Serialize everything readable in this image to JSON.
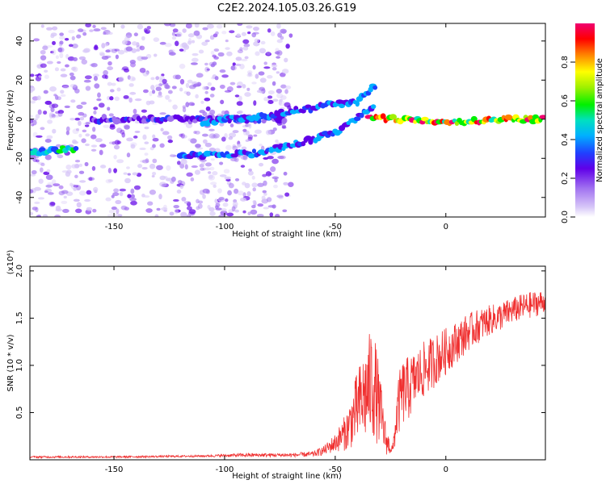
{
  "figure": {
    "title": "C2E2.2024.105.03.26.G19"
  },
  "chart_data": [
    {
      "type": "heatmap",
      "xlabel": "Height of straight line (km)",
      "ylabel": "Frequency (Hz)",
      "xlim": [
        -188,
        45
      ],
      "ylim": [
        -50,
        49
      ],
      "xticks": [
        -150,
        -100,
        -50,
        0
      ],
      "xtick_labels": [
        "-150",
        "-100",
        "-50",
        "0"
      ],
      "yticks": [
        -40,
        -20,
        0,
        20,
        40
      ],
      "ytick_labels": [
        "-40",
        "-20",
        "0",
        "20",
        "40"
      ],
      "colorbar": {
        "label": "Normalized spectral amplitude",
        "range": [
          0,
          1
        ],
        "ticks": [
          0.0,
          0.2,
          0.4,
          0.6,
          0.8
        ],
        "tick_labels": [
          "0.0",
          "0.2",
          "0.4",
          "0.6",
          "0.8"
        ],
        "colormap": [
          "#ffffff",
          "#d8c8f8",
          "#a070f0",
          "#6000e8",
          "#2040ff",
          "#00b0ff",
          "#00e0c0",
          "#00f000",
          "#a0f000",
          "#ffff00",
          "#ff8000",
          "#ff0000",
          "#f00070"
        ]
      },
      "traces": [
        {
          "points": [
            [
              -188,
              -17
            ],
            [
              -178,
              -16
            ],
            [
              -172,
              -15
            ],
            [
              -166,
              -15
            ]
          ],
          "amplitude": 0.45
        },
        {
          "points": [
            [
              -160,
              0
            ],
            [
              -150,
              0
            ],
            [
              -140,
              0
            ],
            [
              -130,
              0
            ],
            [
              -120,
              0
            ],
            [
              -110,
              0
            ],
            [
              -100,
              0
            ],
            [
              -90,
              0
            ],
            [
              -80,
              0
            ],
            [
              -72,
              0
            ]
          ],
          "amplitude": 0.25
        },
        {
          "points": [
            [
              -120,
              -18
            ],
            [
              -110,
              -19
            ],
            [
              -100,
              -18
            ],
            [
              -90,
              -18
            ],
            [
              -80,
              -16
            ],
            [
              -70,
              -13
            ],
            [
              -60,
              -10
            ],
            [
              -50,
              -7
            ],
            [
              -45,
              -3
            ],
            [
              -40,
              1
            ],
            [
              -35,
              5
            ],
            [
              -32,
              8
            ]
          ],
          "amplitude": 0.35
        },
        {
          "points": [
            [
              -110,
              -2
            ],
            [
              -100,
              0
            ],
            [
              -90,
              1
            ],
            [
              -80,
              2
            ],
            [
              -70,
              4
            ],
            [
              -60,
              6
            ],
            [
              -50,
              8
            ],
            [
              -45,
              8
            ],
            [
              -40,
              9
            ],
            [
              -35,
              14
            ],
            [
              -31,
              18
            ]
          ],
          "amplitude": 0.35
        },
        {
          "points": [
            [
              -35,
              1
            ],
            [
              -25,
              0
            ],
            [
              -15,
              0
            ],
            [
              -5,
              -1
            ],
            [
              5,
              -1
            ],
            [
              15,
              -1
            ],
            [
              25,
              0
            ],
            [
              35,
              0
            ],
            [
              45,
              0
            ]
          ],
          "amplitude": 0.8
        }
      ]
    },
    {
      "type": "line",
      "xlabel": "Height of straight line (km)",
      "ylabel": "SNR (10 * v/v)",
      "multiplier": "(x10⁴)",
      "xlim": [
        -188,
        45
      ],
      "ylim": [
        0,
        2.05
      ],
      "xticks": [
        -150,
        -100,
        -50,
        0
      ],
      "xtick_labels": [
        "-150",
        "-100",
        "-50",
        "0"
      ],
      "yticks": [
        0.5,
        1.0,
        1.5,
        2.0
      ],
      "ytick_labels": [
        "0.5",
        "1.0",
        "1.5",
        "2.0"
      ],
      "color": "#f03030",
      "envelope": {
        "x": [
          -188,
          -150,
          -110,
          -90,
          -70,
          -60,
          -55,
          -50,
          -45,
          -40,
          -35,
          -33,
          -30,
          -27,
          -24,
          -22,
          -20,
          -17,
          -14,
          -10,
          -5,
          0,
          5,
          10,
          15,
          20,
          25,
          30,
          35,
          40,
          45
        ],
        "mid": [
          0.03,
          0.03,
          0.04,
          0.05,
          0.05,
          0.06,
          0.1,
          0.18,
          0.3,
          0.55,
          0.75,
          0.85,
          0.55,
          0.2,
          0.1,
          0.5,
          0.7,
          0.75,
          0.85,
          0.95,
          1.05,
          1.15,
          1.25,
          1.35,
          1.42,
          1.48,
          1.52,
          1.58,
          1.62,
          1.65,
          1.68
        ],
        "amp": [
          0.01,
          0.01,
          0.01,
          0.02,
          0.02,
          0.03,
          0.05,
          0.1,
          0.2,
          0.4,
          0.55,
          0.65,
          0.4,
          0.15,
          0.05,
          0.3,
          0.35,
          0.35,
          0.3,
          0.3,
          0.28,
          0.25,
          0.22,
          0.2,
          0.18,
          0.16,
          0.15,
          0.14,
          0.14,
          0.14,
          0.12
        ]
      }
    }
  ]
}
